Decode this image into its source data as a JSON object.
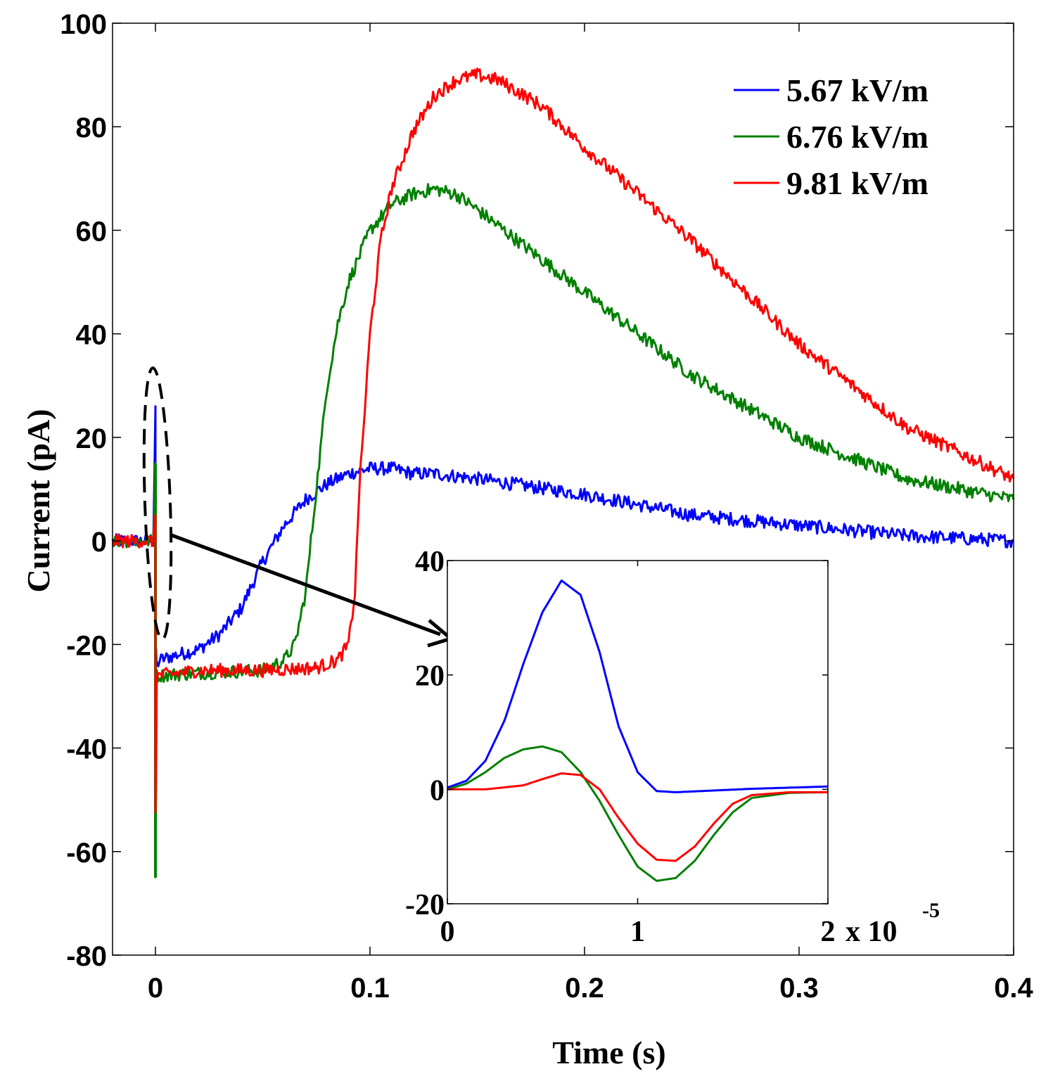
{
  "chart_data": [
    {
      "id": "main",
      "type": "line",
      "xlabel": "Time (s)",
      "ylabel": "Current (pA)",
      "xlim": [
        -0.02,
        0.4
      ],
      "ylim": [
        -80,
        100
      ],
      "xticks": [
        0,
        0.1,
        0.2,
        0.3,
        0.4
      ],
      "xtick_labels": [
        "0",
        "0.1",
        "0.2",
        "0.3",
        "0.4"
      ],
      "yticks": [
        -80,
        -60,
        -40,
        -20,
        0,
        20,
        40,
        60,
        80,
        100
      ],
      "ytick_labels": [
        "-80",
        "-60",
        "-40",
        "-20",
        "0",
        "20",
        "40",
        "60",
        "80",
        "100"
      ],
      "grid": false,
      "legend_position": "top-right",
      "series": [
        {
          "name": "5.67 kV/m",
          "color": "#0000ff",
          "noise": 1.3,
          "x": [
            -0.02,
            -0.001,
            0,
            0,
            0.0003,
            0.0006,
            0.002,
            0.01,
            0.02,
            0.03,
            0.04,
            0.05,
            0.06,
            0.07,
            0.08,
            0.09,
            0.1,
            0.11,
            0.12,
            0.13,
            0.15,
            0.2,
            0.25,
            0.3,
            0.35,
            0.4
          ],
          "y": [
            0,
            0,
            26,
            -31,
            -22,
            -24,
            -23,
            -22,
            -21,
            -18,
            -13,
            -4,
            3,
            8,
            11,
            13,
            14,
            14,
            13,
            13,
            12,
            9,
            5,
            3,
            1,
            0
          ]
        },
        {
          "name": "6.76 kV/m",
          "color": "#008000",
          "noise": 1.3,
          "x": [
            -0.02,
            -0.001,
            0,
            0,
            0.0006,
            0.002,
            0.02,
            0.05,
            0.06,
            0.065,
            0.07,
            0.075,
            0.08,
            0.085,
            0.09,
            0.1,
            0.11,
            0.12,
            0.13,
            0.14,
            0.15,
            0.2,
            0.25,
            0.3,
            0.35,
            0.4
          ],
          "y": [
            0,
            0,
            15,
            -65,
            -26,
            -26,
            -25.5,
            -25,
            -23,
            -20,
            -10,
            10,
            30,
            42,
            50,
            60,
            65,
            67,
            68,
            67,
            64,
            48,
            32,
            20,
            12,
            8
          ],
          "marker_x": [
            0,
            0
          ],
          "marker_y": [
            15,
            -65
          ]
        },
        {
          "name": "9.81 kV/m",
          "color": "#ff0000",
          "noise": 1.3,
          "x": [
            -0.02,
            -0.001,
            0,
            0,
            0.0006,
            0.002,
            0.02,
            0.05,
            0.075,
            0.085,
            0.09,
            0.093,
            0.095,
            0.1,
            0.105,
            0.11,
            0.12,
            0.13,
            0.14,
            0.15,
            0.16,
            0.18,
            0.2,
            0.25,
            0.3,
            0.35,
            0.4
          ],
          "y": [
            0,
            0,
            5,
            -52,
            -26,
            -26,
            -25,
            -25,
            -24.5,
            -23,
            -20,
            -10,
            10,
            40,
            58,
            68,
            79,
            86,
            89,
            90,
            89,
            84,
            76,
            58,
            38,
            22,
            12
          ]
        }
      ]
    },
    {
      "id": "inset",
      "type": "line",
      "xlim": [
        0,
        2
      ],
      "ylim": [
        -20,
        40
      ],
      "x_multiplier": "x 10",
      "x_multiplier_exponent": "-5",
      "xticks": [
        0,
        1,
        2
      ],
      "xtick_labels": [
        "0",
        "1",
        "2"
      ],
      "yticks": [
        -20,
        0,
        20,
        40
      ],
      "ytick_labels": [
        "-20",
        "0",
        "20",
        "40"
      ],
      "series": [
        {
          "name": "5.67 kV/m",
          "color": "#0000ff",
          "x": [
            0,
            0.1,
            0.2,
            0.3,
            0.4,
            0.5,
            0.6,
            0.7,
            0.8,
            0.9,
            1.0,
            1.1,
            1.2,
            1.4,
            1.6,
            1.8,
            2.0
          ],
          "y": [
            0.3,
            1.5,
            5,
            12,
            22,
            31,
            36.5,
            34,
            24,
            11,
            3,
            -0.3,
            -0.5,
            -0.2,
            0.1,
            0.3,
            0.5
          ]
        },
        {
          "name": "6.76 kV/m",
          "color": "#008000",
          "x": [
            0,
            0.1,
            0.2,
            0.3,
            0.4,
            0.5,
            0.6,
            0.7,
            0.8,
            0.9,
            1.0,
            1.1,
            1.2,
            1.3,
            1.4,
            1.5,
            1.6,
            1.8,
            2.0
          ],
          "y": [
            0,
            1,
            3,
            5.5,
            7,
            7.5,
            6.5,
            3,
            -2,
            -8,
            -13.5,
            -16,
            -15.5,
            -12.5,
            -8,
            -4,
            -1.5,
            -0.6,
            -0.5
          ]
        },
        {
          "name": "9.81 kV/m",
          "color": "#ff0000",
          "x": [
            0,
            0.2,
            0.4,
            0.5,
            0.6,
            0.7,
            0.8,
            0.9,
            1.0,
            1.1,
            1.2,
            1.3,
            1.4,
            1.5,
            1.6,
            1.8,
            2.0
          ],
          "y": [
            0,
            0,
            0.7,
            1.8,
            2.8,
            2.5,
            0,
            -5,
            -9.5,
            -12.3,
            -12.5,
            -10,
            -6,
            -2.5,
            -1,
            -0.5,
            -0.5
          ]
        }
      ]
    }
  ]
}
